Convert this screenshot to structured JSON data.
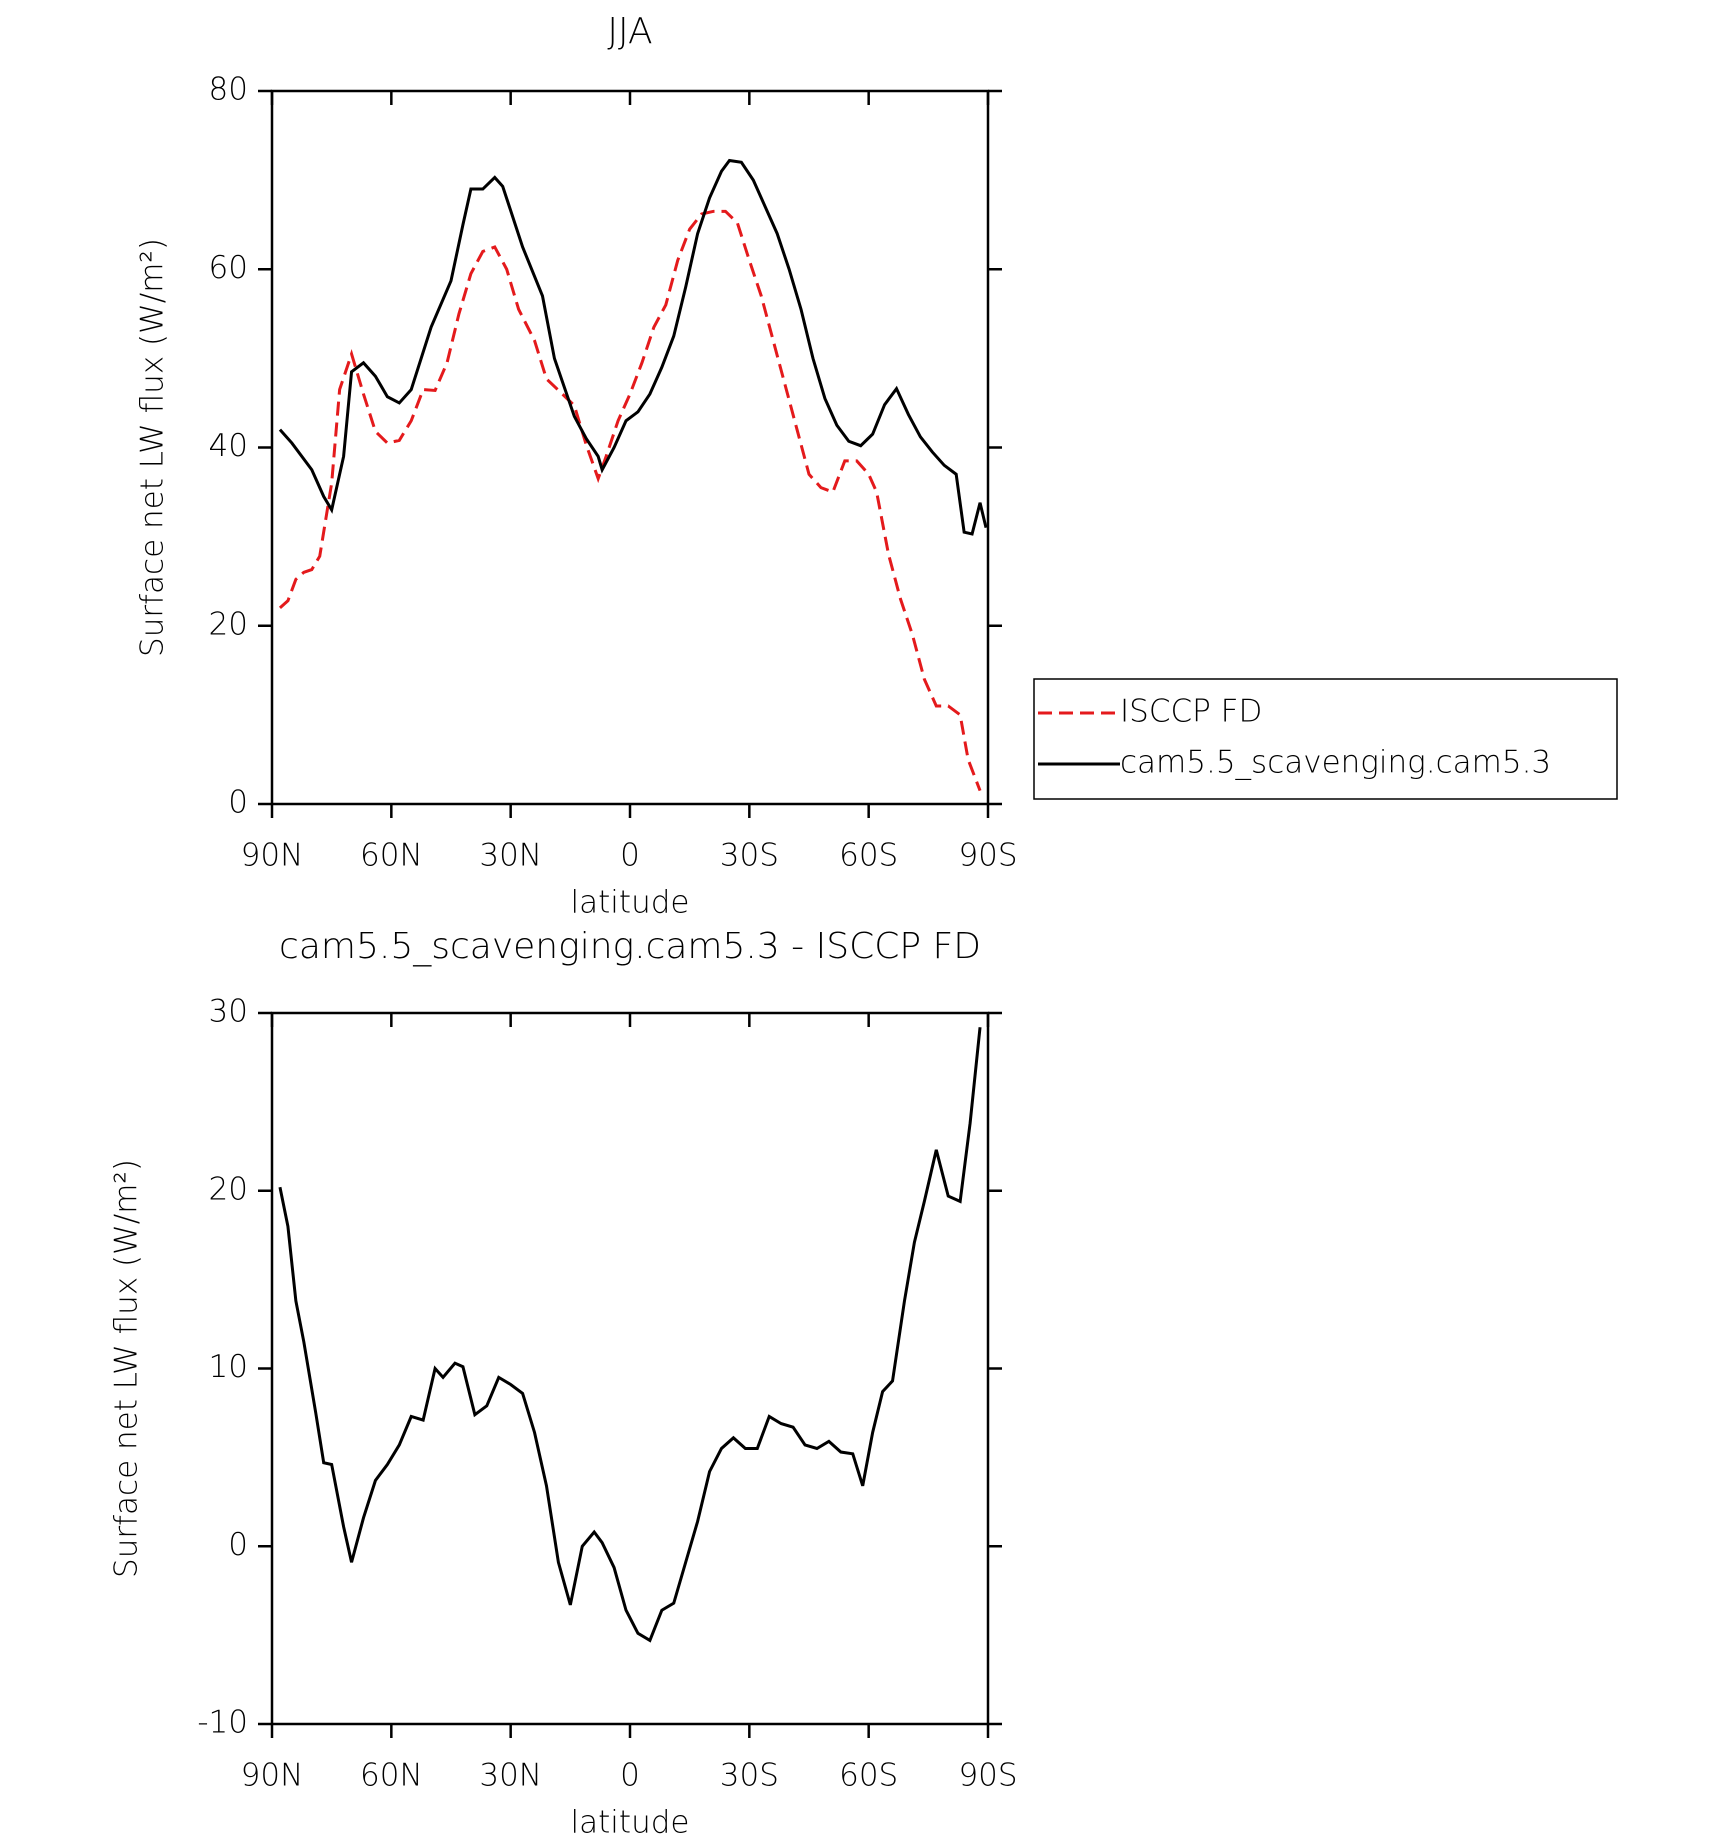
{
  "chart_data": [
    {
      "type": "line",
      "title": "JJA",
      "xlabel": "latitude",
      "ylabel": "Surface net LW flux (W/m²)",
      "xlim": [
        90,
        -90
      ],
      "xticks": [
        {
          "value": 90,
          "label": "90N"
        },
        {
          "value": 60,
          "label": "60N"
        },
        {
          "value": 30,
          "label": "30N"
        },
        0,
        {
          "value": -30,
          "label": "30S"
        },
        {
          "value": -60,
          "label": "60S"
        },
        {
          "value": -90,
          "label": "90S"
        }
      ],
      "ylim": [
        0,
        80
      ],
      "yticks": [
        0,
        20,
        40,
        60,
        80
      ],
      "legend": "right",
      "series": [
        {
          "name": "ISCCP FD",
          "color": "#e41a1c",
          "dash": true,
          "x": [
            88,
            86,
            84,
            82,
            80,
            78,
            75,
            73,
            70,
            67,
            64,
            61,
            58,
            55,
            52,
            49,
            46,
            43,
            40,
            37,
            34,
            31,
            28,
            24,
            21,
            17,
            14,
            11,
            8,
            6,
            3,
            0,
            -3,
            -6,
            -9,
            -12,
            -15,
            -18,
            -21,
            -24,
            -27,
            -30,
            -33,
            -36,
            -39,
            -42,
            -45,
            -48,
            -51,
            -54,
            -57,
            -60,
            -62,
            -65,
            -68,
            -71,
            -74,
            -77,
            -80,
            -83,
            -85,
            -88
          ],
          "values": [
            22,
            22.8,
            25.2,
            26,
            26.3,
            27.8,
            36,
            46.5,
            50.5,
            46,
            41.8,
            40.5,
            40.8,
            43,
            46.5,
            46.4,
            49.5,
            55,
            59.5,
            62,
            62.5,
            60,
            55.5,
            52,
            47.7,
            46,
            44.7,
            40.3,
            36.5,
            39,
            43,
            46,
            49.5,
            53.5,
            56,
            61,
            64.5,
            66.2,
            66.5,
            66.5,
            65.2,
            61,
            57,
            52,
            47,
            42,
            37,
            35.5,
            35,
            38.5,
            38.5,
            37,
            35,
            28,
            23,
            19,
            14,
            11,
            11,
            10,
            5,
            1.5
          ]
        },
        {
          "name": "cam5.5_scavenging.cam5.3",
          "color": "#000000",
          "dash": false,
          "x": [
            88,
            85,
            80,
            77,
            75,
            72,
            70,
            67,
            64,
            61,
            58,
            55,
            50,
            45,
            42,
            40,
            37,
            34,
            32,
            27,
            22,
            19,
            14,
            11,
            8,
            7,
            4,
            1,
            -2,
            -5,
            -8,
            -11,
            -14,
            -17,
            -20,
            -23,
            -25,
            -28,
            -31,
            -34,
            -37,
            -40,
            -43,
            -46,
            -49,
            -52,
            -55,
            -58,
            -61,
            -64,
            -67,
            -70,
            -73,
            -76,
            -79,
            -82,
            -84,
            -86,
            -88,
            -89.5
          ],
          "values": [
            42,
            40.5,
            37.5,
            34.5,
            33,
            39,
            48.5,
            49.5,
            48,
            45.7,
            45,
            46.5,
            53.5,
            58.7,
            65,
            69,
            69,
            70.3,
            69.3,
            62.5,
            57,
            50,
            43.5,
            41,
            39,
            37.5,
            40,
            43,
            44,
            46,
            49,
            52.5,
            58,
            64,
            68,
            71,
            72.2,
            72,
            70,
            67,
            64,
            60,
            55.5,
            50,
            45.5,
            42.5,
            40.7,
            40.2,
            41.5,
            44.8,
            46.6,
            43.7,
            41.2,
            39.5,
            38,
            37,
            30.5,
            30.3,
            33.8,
            31
          ]
        }
      ]
    },
    {
      "type": "line",
      "title": "cam5.5_scavenging.cam5.3 - ISCCP FD",
      "xlabel": "latitude",
      "ylabel": "Surface net LW flux (W/m²)",
      "xlim": [
        90,
        -90
      ],
      "xticks": [
        {
          "value": 90,
          "label": "90N"
        },
        {
          "value": 60,
          "label": "60N"
        },
        {
          "value": 30,
          "label": "30N"
        },
        0,
        {
          "value": -30,
          "label": "30S"
        },
        {
          "value": -60,
          "label": "60S"
        },
        {
          "value": -90,
          "label": "90S"
        }
      ],
      "ylim": [
        -10,
        30
      ],
      "yticks": [
        -10,
        0,
        10,
        20,
        30
      ],
      "series": [
        {
          "color": "#000000",
          "dash": false,
          "x": [
            88,
            86,
            84,
            82,
            79,
            77,
            75,
            72,
            70,
            67,
            64,
            61,
            58,
            55,
            52,
            49,
            47,
            44,
            42,
            39,
            36,
            33,
            30,
            27,
            24,
            21,
            18,
            15,
            12,
            9,
            7,
            4,
            1,
            -2,
            -5,
            -8,
            -11,
            -14,
            -17,
            -20,
            -23,
            -26,
            -29,
            -32,
            -35,
            -38,
            -41,
            -44,
            -47,
            -50,
            -53,
            -56,
            -58.5,
            -61,
            -63.5,
            -66,
            -69,
            -71.5,
            -74,
            -77,
            -80,
            -83,
            -85.5,
            -88
          ],
          "values": [
            20.2,
            18,
            13.8,
            11.5,
            7.5,
            4.7,
            4.6,
            1.1,
            -0.9,
            1.6,
            3.7,
            4.6,
            5.7,
            7.3,
            7.1,
            10,
            9.5,
            10.3,
            10.1,
            7.4,
            7.9,
            9.5,
            9.1,
            8.6,
            6.4,
            3.4,
            -0.9,
            -3.3,
            0,
            0.8,
            0.2,
            -1.2,
            -3.6,
            -4.9,
            -5.3,
            -3.6,
            -3.2,
            -0.9,
            1.4,
            4.2,
            5.5,
            6.1,
            5.5,
            5.5,
            7.3,
            6.9,
            6.7,
            5.7,
            5.5,
            5.9,
            5.3,
            5.2,
            3.4,
            6.4,
            8.7,
            9.3,
            13.8,
            17.1,
            19.4,
            22.3,
            19.7,
            19.4,
            23.8,
            29.2
          ]
        }
      ]
    }
  ]
}
